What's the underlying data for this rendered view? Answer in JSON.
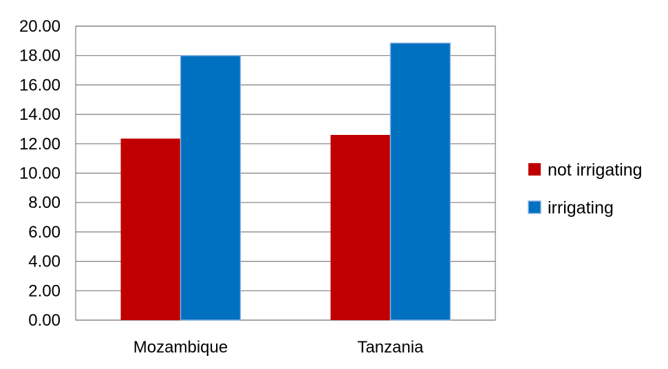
{
  "chart_data": {
    "type": "bar",
    "categories": [
      "Mozambique",
      "Tanzania"
    ],
    "series": [
      {
        "name": "not irrigating",
        "values": [
          12.35,
          12.6
        ],
        "color": "#c00000"
      },
      {
        "name": "irrigating",
        "values": [
          18.0,
          18.85
        ],
        "color": "#0070c0"
      }
    ],
    "ylim": [
      0,
      20
    ],
    "yticks": [
      "0.00",
      "2.00",
      "4.00",
      "6.00",
      "8.00",
      "10.00",
      "12.00",
      "14.00",
      "16.00",
      "18.00",
      "20.00"
    ],
    "grid": true,
    "legend_position": "right",
    "gridline_color": "#7f7f7f"
  }
}
